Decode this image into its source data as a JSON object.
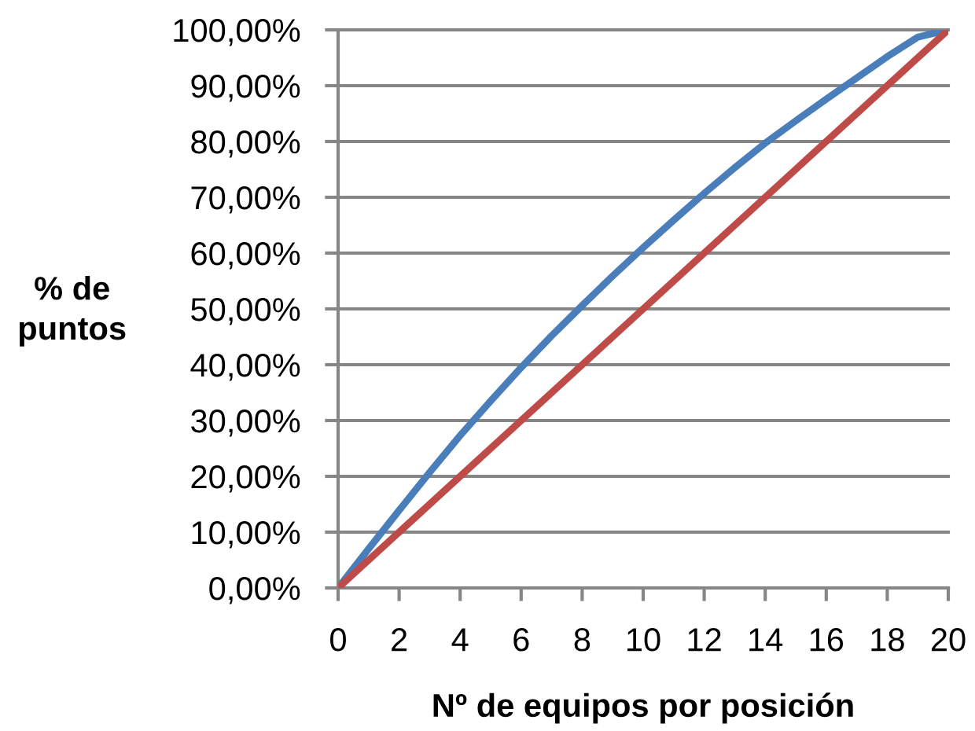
{
  "chart_data": {
    "type": "line",
    "xlabel": "Nº de equipos por posición",
    "ylabel": "% de\npuntos",
    "xlim": [
      0,
      20
    ],
    "ylim": [
      0,
      100
    ],
    "xticks": [
      0,
      2,
      4,
      6,
      8,
      10,
      12,
      14,
      16,
      18,
      20
    ],
    "yticks": [
      {
        "value": 0,
        "label": "0,00%"
      },
      {
        "value": 10,
        "label": "10,00%"
      },
      {
        "value": 20,
        "label": "20,00%"
      },
      {
        "value": 30,
        "label": "30,00%"
      },
      {
        "value": 40,
        "label": "40,00%"
      },
      {
        "value": 50,
        "label": "50,00%"
      },
      {
        "value": 60,
        "label": "60,00%"
      },
      {
        "value": 70,
        "label": "70,00%"
      },
      {
        "value": 80,
        "label": "80,00%"
      },
      {
        "value": 90,
        "label": "90,00%"
      },
      {
        "value": 100,
        "label": "100,00%"
      }
    ],
    "grid": "y",
    "marker": "none",
    "line_style": "solid",
    "series": [
      {
        "color": "#4a7ebb",
        "x": [
          0,
          1,
          2,
          3,
          4,
          5,
          6,
          7,
          8,
          9,
          10,
          11,
          12,
          13,
          14,
          15,
          16,
          17,
          18,
          19,
          20
        ],
        "values": [
          0,
          7.0,
          13.9,
          20.7,
          27.3,
          33.5,
          39.5,
          45.2,
          50.6,
          55.9,
          61.0,
          65.9,
          70.7,
          75.3,
          79.7,
          83.7,
          87.6,
          91.4,
          95.2,
          98.7,
          100
        ]
      },
      {
        "color": "#be4b48",
        "x": [
          0,
          20
        ],
        "values": [
          0,
          100
        ]
      }
    ]
  }
}
